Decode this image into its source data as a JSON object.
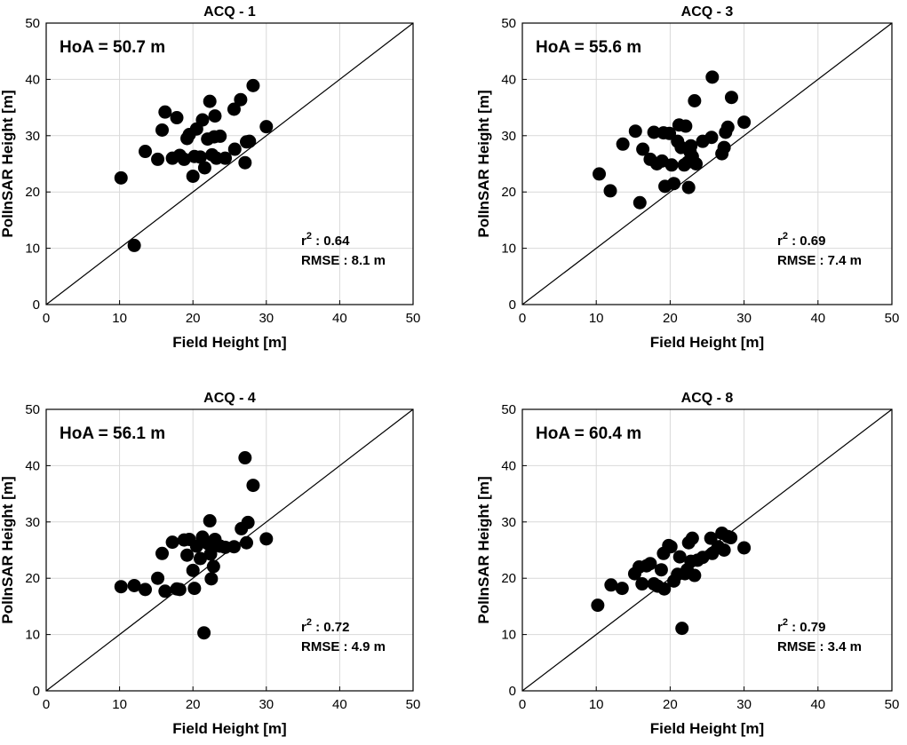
{
  "chart_data": [
    {
      "type": "scatter",
      "title": "ACQ - 1",
      "xlabel": "Field Height [m]",
      "ylabel": "PolInSAR Height [m]",
      "xlim": [
        0,
        50
      ],
      "ylim": [
        0,
        50
      ],
      "xticks": [
        "0",
        "10",
        "20",
        "30",
        "40",
        "50"
      ],
      "yticks": [
        "0",
        "10",
        "20",
        "30",
        "40",
        "50"
      ],
      "grid": true,
      "reference_line": "1:1",
      "hoa": "HoA = 50.7 m",
      "r2_label": "r",
      "r2_sup": "2",
      "r2_value": " : 0.64",
      "rmse": "RMSE : 8.1 m",
      "points": [
        [
          10.2,
          22.5
        ],
        [
          12.0,
          10.5
        ],
        [
          13.5,
          27.2
        ],
        [
          15.2,
          25.8
        ],
        [
          15.8,
          31.0
        ],
        [
          16.2,
          34.2
        ],
        [
          17.2,
          26.0
        ],
        [
          17.8,
          33.2
        ],
        [
          18.2,
          26.5
        ],
        [
          18.8,
          25.8
        ],
        [
          19.2,
          29.5
        ],
        [
          19.5,
          30.2
        ],
        [
          20.0,
          22.8
        ],
        [
          20.2,
          26.3
        ],
        [
          20.5,
          31.2
        ],
        [
          21.0,
          26.2
        ],
        [
          21.3,
          32.8
        ],
        [
          21.6,
          24.3
        ],
        [
          22.0,
          29.4
        ],
        [
          22.3,
          36.1
        ],
        [
          22.6,
          26.6
        ],
        [
          22.9,
          29.8
        ],
        [
          23.0,
          33.5
        ],
        [
          23.2,
          26.0
        ],
        [
          23.7,
          29.9
        ],
        [
          24.4,
          26.0
        ],
        [
          25.6,
          34.7
        ],
        [
          25.7,
          27.6
        ],
        [
          26.5,
          36.4
        ],
        [
          27.1,
          25.2
        ],
        [
          27.3,
          28.9
        ],
        [
          27.7,
          29.0
        ],
        [
          28.2,
          38.9
        ],
        [
          30.0,
          31.6
        ]
      ]
    },
    {
      "type": "scatter",
      "title": "ACQ - 3",
      "xlabel": "Field Height [m]",
      "ylabel": "PolInSAR Height [m]",
      "xlim": [
        0,
        50
      ],
      "ylim": [
        0,
        50
      ],
      "xticks": [
        "0",
        "10",
        "20",
        "30",
        "40",
        "50"
      ],
      "yticks": [
        "0",
        "10",
        "20",
        "30",
        "40",
        "50"
      ],
      "grid": true,
      "reference_line": "1:1",
      "hoa": "HoA = 55.6 m",
      "r2_label": "r",
      "r2_sup": "2",
      "r2_value": " : 0.69",
      "rmse": "RMSE : 7.4 m",
      "points": [
        [
          10.4,
          23.2
        ],
        [
          11.9,
          20.2
        ],
        [
          13.6,
          28.5
        ],
        [
          15.3,
          30.8
        ],
        [
          15.9,
          18.1
        ],
        [
          16.3,
          27.6
        ],
        [
          17.3,
          25.8
        ],
        [
          17.8,
          30.6
        ],
        [
          18.2,
          25.0
        ],
        [
          18.9,
          25.5
        ],
        [
          19.1,
          30.5
        ],
        [
          19.3,
          21.0
        ],
        [
          19.9,
          30.4
        ],
        [
          20.2,
          24.8
        ],
        [
          20.5,
          21.5
        ],
        [
          21.0,
          29.0
        ],
        [
          21.2,
          31.9
        ],
        [
          21.5,
          27.9
        ],
        [
          21.9,
          24.8
        ],
        [
          22.1,
          31.7
        ],
        [
          22.4,
          25.3
        ],
        [
          22.5,
          20.8
        ],
        [
          22.7,
          27.1
        ],
        [
          22.8,
          28.2
        ],
        [
          23.0,
          26.3
        ],
        [
          23.3,
          36.2
        ],
        [
          23.5,
          25.0
        ],
        [
          24.4,
          29.0
        ],
        [
          25.6,
          29.7
        ],
        [
          25.7,
          40.4
        ],
        [
          27.0,
          26.8
        ],
        [
          27.3,
          27.9
        ],
        [
          27.5,
          30.6
        ],
        [
          27.8,
          31.5
        ],
        [
          28.3,
          36.8
        ],
        [
          30.0,
          32.4
        ]
      ]
    },
    {
      "type": "scatter",
      "title": "ACQ - 4",
      "xlabel": "Field Height [m]",
      "ylabel": "PolInSAR Height [m]",
      "xlim": [
        0,
        50
      ],
      "ylim": [
        0,
        50
      ],
      "xticks": [
        "0",
        "10",
        "20",
        "30",
        "40",
        "50"
      ],
      "yticks": [
        "0",
        "10",
        "20",
        "30",
        "40",
        "50"
      ],
      "grid": true,
      "reference_line": "1:1",
      "hoa": "HoA = 56.1 m",
      "r2_label": "r",
      "r2_sup": "2",
      "r2_value": " : 0.72",
      "rmse": "RMSE : 4.9 m",
      "points": [
        [
          10.2,
          18.5
        ],
        [
          12.0,
          18.7
        ],
        [
          13.5,
          18.0
        ],
        [
          15.2,
          20.0
        ],
        [
          15.8,
          24.4
        ],
        [
          16.2,
          17.7
        ],
        [
          17.2,
          26.4
        ],
        [
          17.8,
          18.1
        ],
        [
          18.2,
          18.0
        ],
        [
          18.8,
          26.8
        ],
        [
          19.2,
          24.1
        ],
        [
          19.5,
          26.9
        ],
        [
          20.0,
          21.4
        ],
        [
          20.2,
          18.2
        ],
        [
          20.5,
          25.7
        ],
        [
          21.0,
          23.5
        ],
        [
          21.3,
          27.3
        ],
        [
          21.5,
          10.3
        ],
        [
          22.0,
          26.2
        ],
        [
          22.3,
          30.2
        ],
        [
          22.4,
          24.3
        ],
        [
          22.5,
          19.9
        ],
        [
          22.8,
          22.1
        ],
        [
          23.0,
          26.9
        ],
        [
          23.2,
          25.9
        ],
        [
          23.7,
          25.7
        ],
        [
          24.4,
          25.5
        ],
        [
          25.6,
          25.6
        ],
        [
          26.6,
          28.8
        ],
        [
          27.1,
          41.4
        ],
        [
          27.3,
          26.3
        ],
        [
          27.5,
          29.9
        ],
        [
          28.2,
          36.5
        ],
        [
          30.0,
          27.0
        ]
      ]
    },
    {
      "type": "scatter",
      "title": "ACQ - 8",
      "xlabel": "Field Height [m]",
      "ylabel": "PolInSAR Height [m]",
      "xlim": [
        0,
        50
      ],
      "ylim": [
        0,
        50
      ],
      "xticks": [
        "0",
        "10",
        "20",
        "30",
        "40",
        "50"
      ],
      "yticks": [
        "0",
        "10",
        "20",
        "30",
        "40",
        "50"
      ],
      "grid": true,
      "reference_line": "1:1",
      "hoa": "HoA = 60.4 m",
      "r2_label": "r",
      "r2_sup": "2",
      "r2_value": " : 0.79",
      "rmse": "RMSE : 3.4 m",
      "points": [
        [
          10.2,
          15.2
        ],
        [
          12.0,
          18.8
        ],
        [
          13.5,
          18.2
        ],
        [
          15.2,
          20.8
        ],
        [
          15.8,
          22.0
        ],
        [
          16.2,
          19.0
        ],
        [
          16.8,
          22.2
        ],
        [
          17.3,
          22.6
        ],
        [
          17.8,
          19.0
        ],
        [
          18.3,
          18.6
        ],
        [
          18.8,
          21.5
        ],
        [
          19.1,
          24.4
        ],
        [
          19.2,
          18.1
        ],
        [
          19.8,
          25.8
        ],
        [
          20.1,
          25.6
        ],
        [
          20.5,
          19.5
        ],
        [
          21.0,
          20.7
        ],
        [
          21.3,
          23.8
        ],
        [
          21.6,
          11.1
        ],
        [
          22.0,
          20.8
        ],
        [
          22.3,
          21.5
        ],
        [
          22.5,
          26.3
        ],
        [
          22.8,
          23.0
        ],
        [
          23.0,
          27.1
        ],
        [
          23.3,
          20.5
        ],
        [
          23.7,
          23.2
        ],
        [
          24.4,
          23.7
        ],
        [
          25.5,
          27.1
        ],
        [
          25.7,
          24.4
        ],
        [
          26.5,
          25.6
        ],
        [
          27.0,
          28.0
        ],
        [
          27.3,
          25.0
        ],
        [
          27.8,
          27.4
        ],
        [
          28.2,
          27.2
        ],
        [
          30.0,
          25.4
        ]
      ]
    }
  ]
}
